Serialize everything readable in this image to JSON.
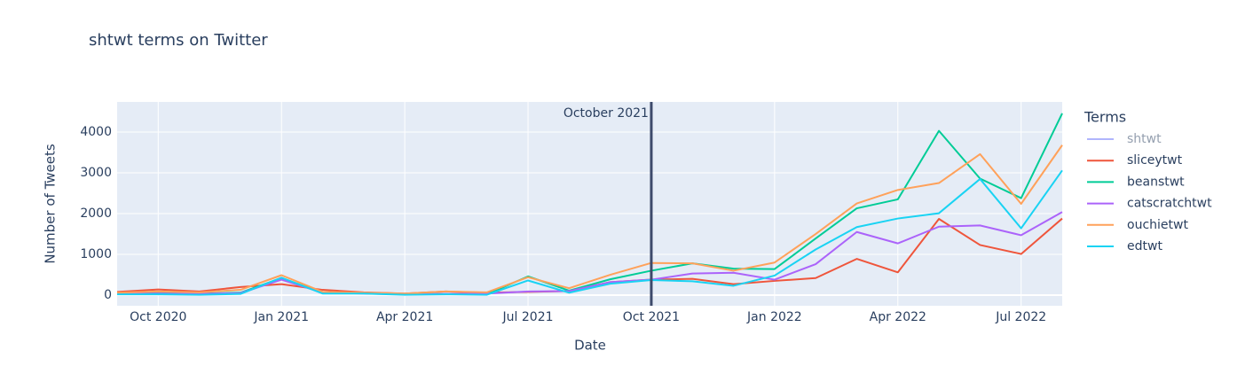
{
  "chart_data": {
    "type": "line",
    "title": "shtwt terms on Twitter",
    "x_label": "Date",
    "y_label": "Number of Tweets",
    "legend_title": "Terms",
    "legend": "right",
    "grid": true,
    "x": [
      "2020-09",
      "2020-10",
      "2020-11",
      "2020-12",
      "2021-01",
      "2021-02",
      "2021-03",
      "2021-04",
      "2021-05",
      "2021-06",
      "2021-07",
      "2021-08",
      "2021-09",
      "2021-10",
      "2021-11",
      "2021-12",
      "2022-01",
      "2022-02",
      "2022-03",
      "2022-04",
      "2022-05",
      "2022-06",
      "2022-07",
      "2022-08"
    ],
    "xlim": [
      "2020-09",
      "2022-08"
    ],
    "xticks": [
      {
        "value": "2020-10",
        "label": "Oct 2020"
      },
      {
        "value": "2021-01",
        "label": "Jan 2021"
      },
      {
        "value": "2021-04",
        "label": "Apr 2021"
      },
      {
        "value": "2021-07",
        "label": "Jul 2021"
      },
      {
        "value": "2021-10",
        "label": "Oct 2021"
      },
      {
        "value": "2022-01",
        "label": "Jan 2022"
      },
      {
        "value": "2022-04",
        "label": "Apr 2022"
      },
      {
        "value": "2022-07",
        "label": "Jul 2022"
      }
    ],
    "ylim": [
      -260,
      4740
    ],
    "yticks": [
      0,
      1000,
      2000,
      3000,
      4000
    ],
    "vline": {
      "x": "2021-10",
      "label": "October 2021",
      "color": "#3d4a6b"
    },
    "series": [
      {
        "name": "shtwt",
        "color": "#636efa",
        "visible": "legendonly"
      },
      {
        "name": "sliceytwt",
        "color": "#ef553b",
        "values": [
          80,
          140,
          90,
          200,
          270,
          130,
          70,
          40,
          90,
          60,
          80,
          100,
          320,
          380,
          400,
          270,
          350,
          420,
          890,
          560,
          1870,
          1230,
          1010,
          1880
        ]
      },
      {
        "name": "beanstwt",
        "color": "#00cc96",
        "values": [
          50,
          60,
          40,
          60,
          420,
          60,
          50,
          20,
          30,
          20,
          460,
          110,
          390,
          600,
          780,
          650,
          640,
          1390,
          2130,
          2350,
          4030,
          2860,
          2380,
          4460
        ]
      },
      {
        "name": "catscratchtwt",
        "color": "#ab63fa",
        "values": [
          30,
          40,
          30,
          50,
          380,
          60,
          40,
          20,
          30,
          40,
          90,
          100,
          320,
          380,
          530,
          550,
          380,
          760,
          1550,
          1270,
          1680,
          1710,
          1470,
          2040
        ]
      },
      {
        "name": "ouchietwt",
        "color": "#ffa15a",
        "values": [
          60,
          90,
          70,
          130,
          490,
          80,
          60,
          40,
          90,
          70,
          440,
          170,
          500,
          790,
          780,
          600,
          800,
          1500,
          2250,
          2580,
          2750,
          3460,
          2240,
          3680
        ]
      },
      {
        "name": "edtwt",
        "color": "#19d3f3",
        "values": [
          20,
          20,
          10,
          30,
          430,
          40,
          40,
          10,
          20,
          10,
          360,
          60,
          280,
          370,
          340,
          230,
          480,
          1120,
          1670,
          1880,
          2010,
          2850,
          1640,
          3060
        ]
      }
    ]
  }
}
